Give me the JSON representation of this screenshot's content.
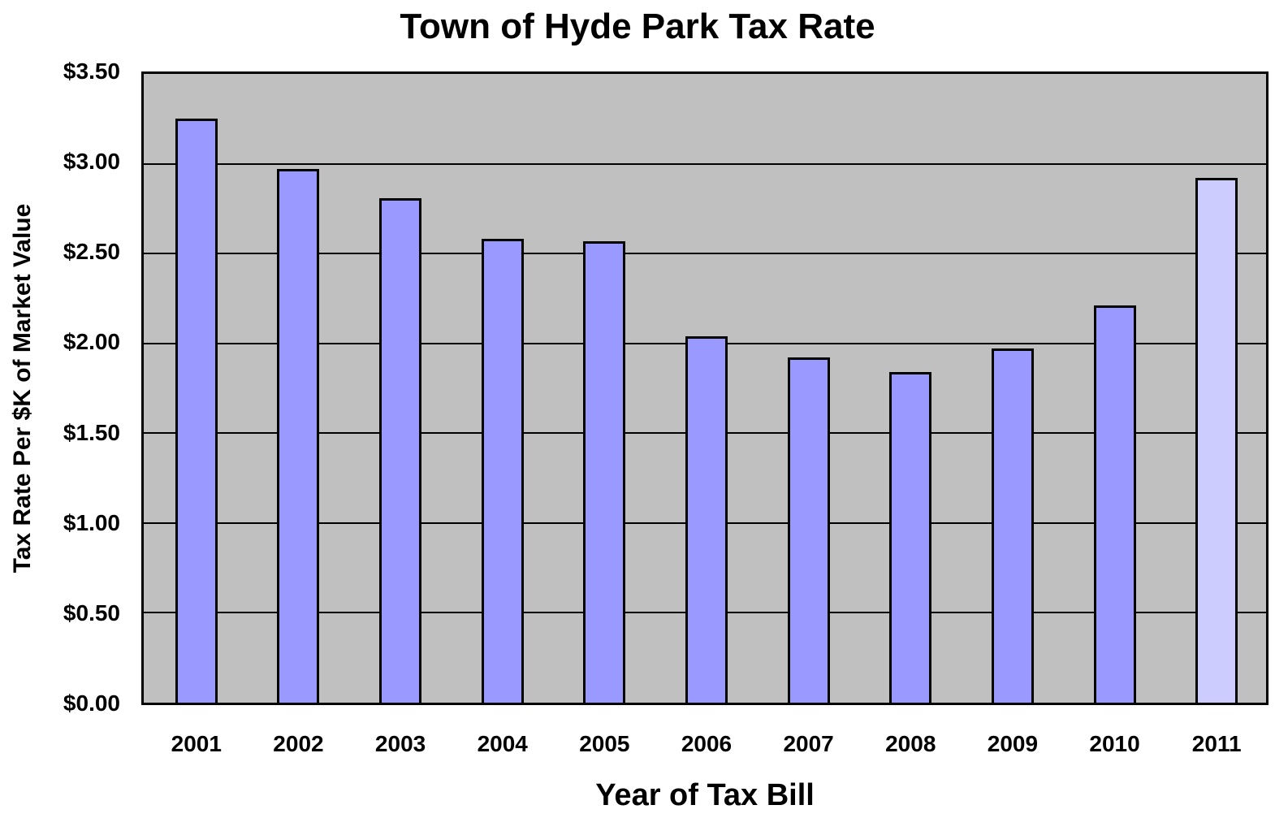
{
  "chart_data": {
    "type": "bar",
    "title": "Town of Hyde Park Tax Rate",
    "xlabel": "Year of Tax Bill",
    "ylabel": "Tax Rate Per $K of Market Value",
    "categories": [
      "2001",
      "2002",
      "2003",
      "2004",
      "2005",
      "2006",
      "2007",
      "2008",
      "2009",
      "2010",
      "2011"
    ],
    "values": [
      3.25,
      2.97,
      2.81,
      2.58,
      2.57,
      2.04,
      1.92,
      1.84,
      1.97,
      2.21,
      2.92
    ],
    "ylim": [
      0,
      3.5
    ],
    "yticks": [
      "$0.00",
      "$0.50",
      "$1.00",
      "$1.50",
      "$2.00",
      "$2.50",
      "$3.00",
      "$3.50"
    ],
    "grid": true,
    "legend": null,
    "colors": {
      "bar": "#9999ff",
      "highlight_bar": "#ccccff",
      "plot_background": "#c0c0c0"
    },
    "highlighted_category": "2011"
  }
}
